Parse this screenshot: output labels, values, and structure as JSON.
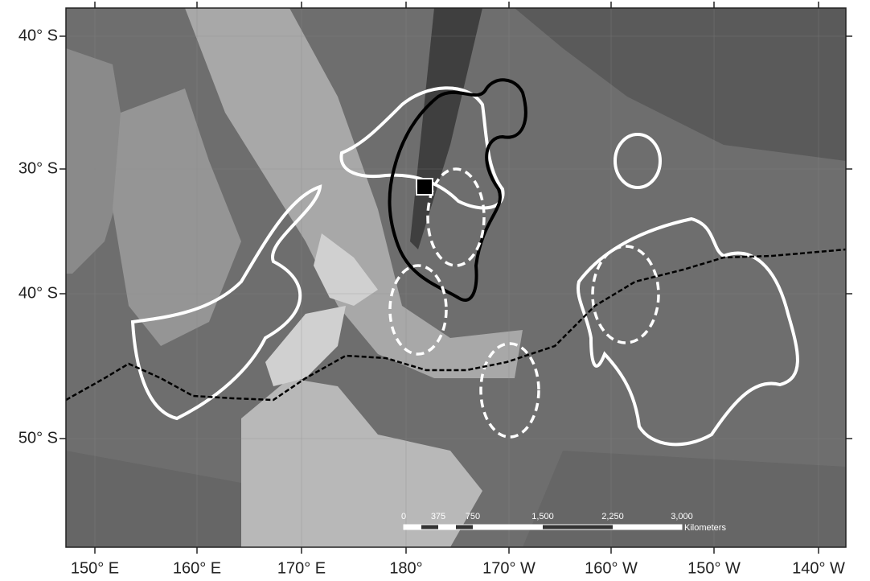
{
  "map": {
    "longitude_labels": [
      "150° E",
      "160° E",
      "170° E",
      "180°",
      "170° W",
      "160° W",
      "150° W",
      "140° W"
    ],
    "latitude_labels": [
      "40° S",
      "30° S",
      "40° S",
      "50° S"
    ]
  },
  "scale_bar": {
    "labels": [
      "0",
      "375",
      "750",
      "1,500",
      "2,250",
      "3,000"
    ],
    "unit": "Kilometers"
  }
}
